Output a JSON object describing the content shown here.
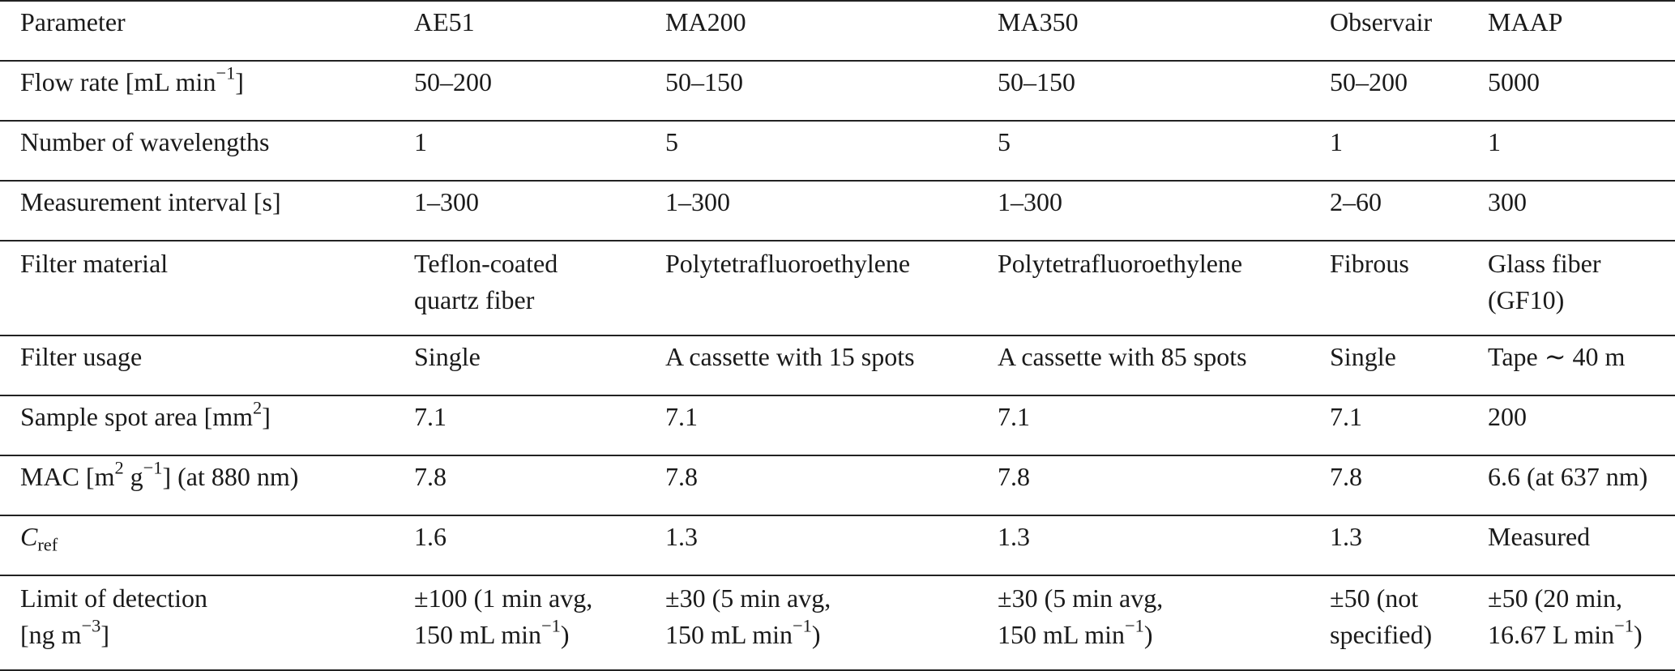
{
  "table": {
    "columns": [
      "Parameter",
      "AE51",
      "MA200",
      "MA350",
      "Observair",
      "MAAP"
    ],
    "rows": [
      {
        "param": "Flow rate",
        "param_unit_pre": "[mL min",
        "param_unit_sup": "−1",
        "param_unit_post": "]",
        "values": [
          "50–200",
          "50–150",
          "50–150",
          "50–200",
          "5000"
        ]
      },
      {
        "param": "Number of wavelengths",
        "values": [
          "1",
          "5",
          "5",
          "1",
          "1"
        ]
      },
      {
        "param": "Measurement interval [s]",
        "values": [
          "1–300",
          "1–300",
          "1–300",
          "2–60",
          "300"
        ]
      },
      {
        "param": "Filter material",
        "values": [
          [
            "Teflon-coated",
            "quartz fiber"
          ],
          [
            "Polytetrafluoroethylene"
          ],
          [
            "Polytetrafluoroethylene"
          ],
          [
            "Fibrous"
          ],
          [
            "Glass fiber",
            "(GF10)"
          ]
        ]
      },
      {
        "param": "Filter usage",
        "values": [
          "Single",
          "A cassette with 15 spots",
          "A cassette with 85 spots",
          "Single",
          "Tape ∼ 40 m"
        ]
      },
      {
        "param": "Sample spot area [mm",
        "param_sup": "2",
        "param_post": "]",
        "values": [
          "7.1",
          "7.1",
          "7.1",
          "7.1",
          "200"
        ]
      },
      {
        "param_a": "MAC [m",
        "param_sup1": "2",
        "param_b": " g",
        "param_sup2": "−1",
        "param_c": "] (at 880 nm)",
        "values": [
          "7.8",
          "7.8",
          "7.8",
          "7.8",
          "6.6 (at 637 nm)"
        ]
      },
      {
        "param_main": "C",
        "param_sub": "ref",
        "values": [
          "1.6",
          "1.3",
          "1.3",
          "1.3",
          "Measured"
        ]
      },
      {
        "param_line1": "Limit of detection",
        "param_line2_pre": "[ng m",
        "param_line2_sup": "−3",
        "param_line2_post": "]",
        "values": [
          {
            "line1": "±100 (1 min avg,",
            "line2_pre": "150 mL min",
            "line2_sup": "−1",
            "line2_post": ")"
          },
          {
            "line1": "±30 (5 min avg,",
            "line2_pre": "150 mL min",
            "line2_sup": "−1",
            "line2_post": ")"
          },
          {
            "line1": "±30 (5 min avg,",
            "line2_pre": "150 mL min",
            "line2_sup": "−1",
            "line2_post": ")"
          },
          {
            "line1": "±50 (not",
            "line2_pre": "specified)",
            "line2_sup": "",
            "line2_post": ""
          },
          {
            "line1": "±50 (20 min,",
            "line2_pre": "16.67 L min",
            "line2_sup": "−1",
            "line2_post": ")"
          }
        ]
      }
    ]
  }
}
